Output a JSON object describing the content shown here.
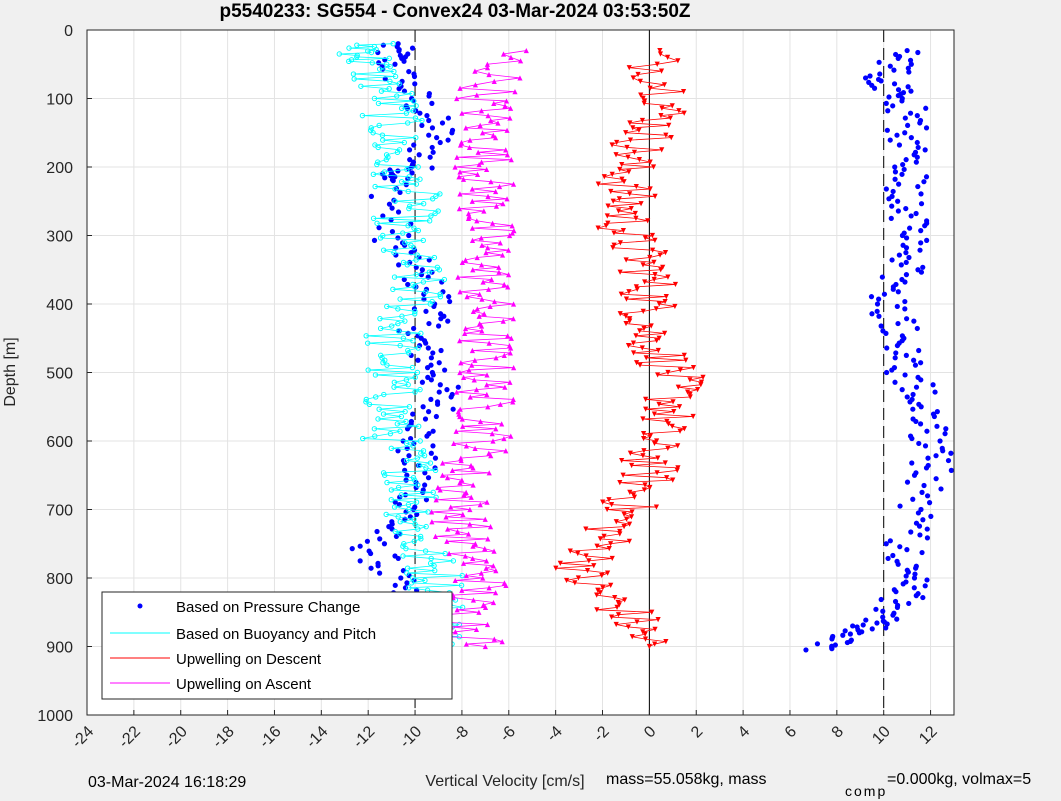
{
  "chart_data": {
    "type": "scatter",
    "title": "p5540233: SG554 - Convex24 03-Mar-2024 03:53:50Z",
    "xlabel": "Vertical Velocity [cm/s]",
    "ylabel": "Depth [m]",
    "xlim": [
      -24,
      13
    ],
    "ylim": [
      0,
      1000
    ],
    "y_reversed": true,
    "grid": true,
    "x_ticks": [
      -24,
      -22,
      -20,
      -18,
      -16,
      -14,
      -12,
      -10,
      -8,
      -6,
      -4,
      -2,
      0,
      2,
      4,
      6,
      8,
      10,
      12
    ],
    "y_ticks": [
      0,
      100,
      200,
      300,
      400,
      500,
      600,
      700,
      800,
      900,
      1000
    ],
    "reference_lines": [
      {
        "x": -10,
        "style": "dashed"
      },
      {
        "x": 0,
        "style": "solid"
      },
      {
        "x": 10,
        "style": "dashed"
      }
    ],
    "legend_position": "bottom-left",
    "series": [
      {
        "name": "Based on Pressure Change",
        "color": "#0000ff",
        "marker": "dot",
        "descent_profile": [
          [
            -11,
            20
          ],
          [
            -11,
            50
          ],
          [
            -10,
            100
          ],
          [
            -9,
            150
          ],
          [
            -10,
            200
          ],
          [
            -11,
            220
          ],
          [
            -11,
            300
          ],
          [
            -10,
            350
          ],
          [
            -9,
            400
          ],
          [
            -10,
            450
          ],
          [
            -9,
            500
          ],
          [
            -9,
            550
          ],
          [
            -10,
            600
          ],
          [
            -10,
            650
          ],
          [
            -10,
            700
          ],
          [
            -12,
            750
          ],
          [
            -11,
            800
          ],
          [
            -10,
            850
          ],
          [
            -10,
            900
          ]
        ],
        "ascent_profile": [
          [
            7,
            905
          ],
          [
            9,
            880
          ],
          [
            10,
            860
          ],
          [
            11,
            820
          ],
          [
            11,
            780
          ],
          [
            11,
            720
          ],
          [
            12,
            650
          ],
          [
            12,
            600
          ],
          [
            12,
            550
          ],
          [
            11,
            500
          ],
          [
            11,
            450
          ],
          [
            10,
            400
          ],
          [
            11,
            350
          ],
          [
            11,
            300
          ],
          [
            11,
            250
          ],
          [
            11,
            200
          ],
          [
            11,
            150
          ],
          [
            11,
            100
          ],
          [
            10,
            70
          ],
          [
            11,
            30
          ]
        ]
      },
      {
        "name": "Based on Buoyancy and Pitch",
        "color": "#00ffff",
        "marker": "circle",
        "descent_profile": [
          [
            -12,
            20
          ],
          [
            -12,
            50
          ],
          [
            -11,
            100
          ],
          [
            -11,
            150
          ],
          [
            -11,
            200
          ],
          [
            -10,
            250
          ],
          [
            -11,
            300
          ],
          [
            -10,
            350
          ],
          [
            -10,
            400
          ],
          [
            -11,
            450
          ],
          [
            -11,
            500
          ],
          [
            -11,
            550
          ],
          [
            -11,
            600
          ],
          [
            -10,
            650
          ],
          [
            -10,
            700
          ],
          [
            -10,
            750
          ],
          [
            -9,
            800
          ],
          [
            -9,
            850
          ],
          [
            -9,
            900
          ]
        ]
      },
      {
        "name": "Upwelling on Descent",
        "color": "#ff0000",
        "marker": "triangle-down",
        "profile": [
          [
            0,
            30
          ],
          [
            1,
            100
          ],
          [
            0,
            150
          ],
          [
            -1,
            200
          ],
          [
            -1,
            250
          ],
          [
            -1,
            300
          ],
          [
            0,
            350
          ],
          [
            0,
            400
          ],
          [
            0,
            450
          ],
          [
            1,
            500
          ],
          [
            1,
            550
          ],
          [
            0,
            600
          ],
          [
            0,
            650
          ],
          [
            -1,
            700
          ],
          [
            -2,
            750
          ],
          [
            -3,
            800
          ],
          [
            -1,
            850
          ],
          [
            0,
            900
          ]
        ]
      },
      {
        "name": "Upwelling on Ascent",
        "color": "#ff00ff",
        "marker": "triangle-up",
        "profile": [
          [
            -6,
            30
          ],
          [
            -7,
            100
          ],
          [
            -7,
            150
          ],
          [
            -7,
            200
          ],
          [
            -7,
            250
          ],
          [
            -7,
            300
          ],
          [
            -7,
            350
          ],
          [
            -7,
            400
          ],
          [
            -7,
            450
          ],
          [
            -7,
            500
          ],
          [
            -7,
            550
          ],
          [
            -7,
            600
          ],
          [
            -8,
            650
          ],
          [
            -8,
            700
          ],
          [
            -8,
            750
          ],
          [
            -7,
            800
          ],
          [
            -8,
            850
          ],
          [
            -7,
            900
          ]
        ]
      }
    ]
  },
  "footer": {
    "date": "03-Mar-2024 16:18:29",
    "mass": "mass=55.058kg, mass",
    "comp_subscript": "comp",
    "comp": "=0.000kg, volmax=5"
  }
}
